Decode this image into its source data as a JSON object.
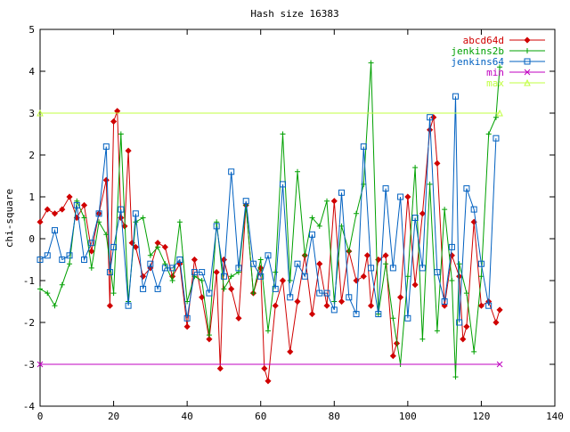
{
  "chart_data": {
    "type": "line",
    "title": "Hash size 16383",
    "xlabel": "",
    "ylabel": "chi-square",
    "xlim": [
      0,
      140
    ],
    "ylim": [
      -4,
      5
    ],
    "x_ticks": [
      "0",
      "20",
      "40",
      "60",
      "80",
      "100",
      "120",
      "140"
    ],
    "y_ticks": [
      "-4",
      "-3",
      "-2",
      "-1",
      "0",
      "1",
      "2",
      "3",
      "4",
      "5"
    ],
    "grid": false,
    "legend_position": "top-right",
    "series": [
      {
        "name": "abcd64d",
        "color": "#d00000",
        "marker": "diamond",
        "x": [
          0,
          2,
          4,
          6,
          8,
          10,
          12,
          14,
          16,
          18,
          19,
          20,
          21,
          22,
          23,
          24,
          25,
          26,
          28,
          30,
          32,
          34,
          36,
          38,
          40,
          42,
          44,
          46,
          48,
          49,
          50,
          52,
          54,
          56,
          58,
          60,
          61,
          62,
          64,
          66,
          68,
          70,
          72,
          74,
          76,
          78,
          80,
          82,
          84,
          86,
          88,
          89,
          90,
          92,
          94,
          96,
          97,
          98,
          100,
          102,
          104,
          106,
          107,
          108,
          110,
          112,
          114,
          115,
          116,
          118,
          120,
          122,
          124,
          125
        ],
        "y": [
          0.4,
          0.7,
          0.6,
          0.7,
          1.0,
          0.5,
          0.8,
          -0.3,
          0.6,
          1.4,
          -1.6,
          2.8,
          3.05,
          0.5,
          0.3,
          2.1,
          -0.1,
          -0.2,
          -0.9,
          -0.7,
          -0.1,
          -0.2,
          -0.9,
          -0.6,
          -2.1,
          -0.5,
          -1.4,
          -2.4,
          -0.8,
          -3.1,
          -0.5,
          -1.2,
          -1.9,
          0.8,
          -1.3,
          -0.7,
          -3.1,
          -3.4,
          -1.6,
          -1.0,
          -2.7,
          -1.5,
          -0.4,
          -1.8,
          -0.6,
          -1.6,
          0.9,
          -1.5,
          -0.3,
          -1.0,
          -0.9,
          -0.4,
          -1.6,
          -0.5,
          -0.4,
          -2.8,
          -2.5,
          -1.4,
          1.0,
          -1.1,
          0.6,
          2.6,
          2.9,
          1.8,
          -1.6,
          -0.4,
          -0.9,
          -2.4,
          -2.1,
          0.4,
          -1.6,
          -1.5,
          -2.0,
          -1.7
        ]
      },
      {
        "name": "jenkins2b",
        "color": "#00a000",
        "marker": "plus",
        "x": [
          0,
          2,
          4,
          6,
          8,
          10,
          12,
          14,
          16,
          18,
          20,
          22,
          24,
          26,
          28,
          30,
          32,
          34,
          36,
          38,
          40,
          42,
          44,
          46,
          48,
          50,
          52,
          54,
          56,
          58,
          60,
          62,
          64,
          66,
          68,
          70,
          72,
          74,
          76,
          78,
          80,
          82,
          84,
          86,
          88,
          90,
          92,
          94,
          96,
          98,
          100,
          102,
          104,
          106,
          108,
          110,
          112,
          113,
          114,
          116,
          118,
          120,
          122,
          124,
          125
        ],
        "y": [
          -1.2,
          -1.3,
          -1.6,
          -1.1,
          -0.6,
          0.9,
          0.5,
          -0.7,
          0.4,
          0.1,
          -1.3,
          2.5,
          -1.5,
          0.4,
          0.5,
          -0.4,
          -0.2,
          -0.6,
          -1.0,
          0.4,
          -1.5,
          -0.9,
          -1.0,
          -2.3,
          0.4,
          -1.2,
          -0.9,
          -0.8,
          0.8,
          -1.3,
          -0.5,
          -2.2,
          -0.8,
          2.5,
          -1.0,
          1.6,
          -0.4,
          0.5,
          0.3,
          0.9,
          -1.5,
          0.3,
          -0.3,
          0.6,
          1.3,
          4.2,
          -1.8,
          -0.6,
          -1.9,
          -3.0,
          -0.9,
          1.7,
          -2.4,
          1.3,
          -2.2,
          0.7,
          -1.0,
          -3.3,
          -0.6,
          -1.3,
          -2.7,
          -0.9,
          2.5,
          2.9,
          4.1
        ]
      },
      {
        "name": "jenkins64",
        "color": "#0060c0",
        "marker": "square",
        "x": [
          0,
          2,
          4,
          6,
          8,
          10,
          12,
          14,
          16,
          18,
          19,
          20,
          22,
          24,
          26,
          28,
          30,
          32,
          34,
          36,
          38,
          40,
          42,
          44,
          46,
          48,
          50,
          52,
          54,
          56,
          58,
          60,
          62,
          64,
          66,
          68,
          70,
          72,
          74,
          76,
          78,
          80,
          82,
          84,
          86,
          88,
          90,
          92,
          94,
          96,
          98,
          100,
          102,
          104,
          106,
          108,
          110,
          112,
          113,
          114,
          116,
          118,
          120,
          122,
          124
        ],
        "y": [
          -0.5,
          -0.4,
          0.2,
          -0.5,
          -0.4,
          0.8,
          -0.5,
          -0.1,
          0.6,
          2.2,
          -0.8,
          -0.2,
          0.7,
          -1.6,
          0.6,
          -1.2,
          -0.6,
          -1.2,
          -0.7,
          -0.7,
          -0.5,
          -1.9,
          -0.8,
          -0.8,
          -1.3,
          0.3,
          -0.9,
          1.6,
          -0.7,
          0.9,
          -0.6,
          -0.9,
          -0.4,
          -1.2,
          1.3,
          -1.4,
          -0.6,
          -0.9,
          0.1,
          -1.3,
          -1.3,
          -1.7,
          1.1,
          -1.4,
          -1.8,
          2.2,
          -0.7,
          -1.8,
          1.2,
          -0.7,
          1.0,
          -1.9,
          0.5,
          -0.7,
          2.9,
          -0.8,
          -1.5,
          -0.2,
          3.4,
          -2.0,
          1.2,
          0.7,
          -0.6,
          -1.6,
          2.4
        ]
      },
      {
        "name": "min",
        "color": "#c000c0",
        "marker": "x",
        "x": [
          0,
          125
        ],
        "y": [
          -3,
          -3
        ]
      },
      {
        "name": "max",
        "color": "#c0ff40",
        "marker": "triangle",
        "x": [
          0,
          125
        ],
        "y": [
          3,
          3
        ]
      }
    ]
  }
}
